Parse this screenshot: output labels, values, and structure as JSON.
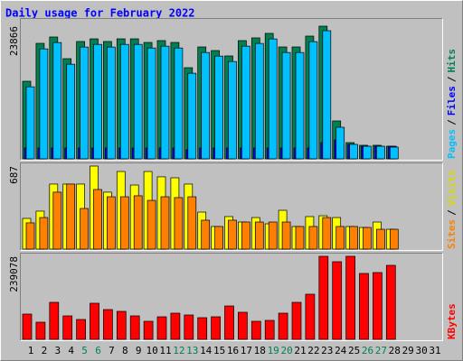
{
  "title": "Daily usage for February 2022",
  "legend_separator": "/",
  "chart_data": [
    {
      "type": "bar",
      "ylim": [
        0,
        23866
      ],
      "yticks": [
        23866
      ],
      "series": [
        {
          "name": "Hits",
          "color": "#008050",
          "values": [
            13960,
            20780,
            21920,
            18020,
            21110,
            21590,
            21110,
            21590,
            21590,
            20940,
            21270,
            20940,
            16400,
            20130,
            19480,
            18510,
            21270,
            21760,
            22570,
            20130,
            20130,
            22080,
            23866,
            6820,
            2920,
            2440,
            2440,
            2270,
            null,
            null,
            null
          ]
        },
        {
          "name": "Files",
          "color": "#0000ff",
          "values": [
            1950,
            1950,
            1950,
            1950,
            1950,
            1950,
            1950,
            1950,
            1950,
            1950,
            1950,
            1950,
            1620,
            1950,
            1950,
            1950,
            1950,
            1950,
            1950,
            1950,
            1950,
            1950,
            2920,
            3410,
            2600,
            2270,
            2270,
            2270,
            null,
            null,
            null
          ]
        },
        {
          "name": "Pages",
          "color": "#00c0ff",
          "values": [
            12960,
            19780,
            20920,
            17020,
            20110,
            20590,
            20110,
            20590,
            20590,
            19940,
            20270,
            19940,
            15400,
            19130,
            18480,
            17510,
            20270,
            20760,
            21570,
            19130,
            19130,
            21080,
            23050,
            5680,
            2600,
            2270,
            2270,
            2110,
            null,
            null,
            null
          ]
        }
      ]
    },
    {
      "type": "bar",
      "ylim": [
        0,
        687
      ],
      "yticks": [
        687
      ],
      "series": [
        {
          "name": "Visits",
          "color": "#ffff00",
          "values": [
            254,
            314,
            538,
            538,
            538,
            687,
            471,
            642,
            530,
            642,
            598,
            590,
            538,
            306,
            187,
            269,
            224,
            261,
            209,
            321,
            187,
            269,
            276,
            261,
            187,
            179,
            224,
            164,
            null,
            null,
            null
          ]
        },
        {
          "name": "Sites",
          "color": "#ff8000",
          "values": [
            217,
            261,
            471,
            538,
            336,
            493,
            433,
            433,
            441,
            403,
            433,
            426,
            433,
            239,
            187,
            239,
            224,
            224,
            224,
            224,
            187,
            187,
            261,
            187,
            187,
            179,
            164,
            164,
            null,
            null,
            null
          ]
        }
      ]
    },
    {
      "type": "bar",
      "ylim": [
        0,
        239078
      ],
      "yticks": [
        239078
      ],
      "series": [
        {
          "name": "KBytes",
          "color": "#ff0000",
          "values": [
            72770,
            49380,
            106560,
            67570,
            57180,
            103960,
            85770,
            80570,
            67570,
            51980,
            64980,
            75370,
            70170,
            62380,
            64980,
            96160,
            77970,
            51980,
            54580,
            75370,
            106560,
            129950,
            239078,
            223510,
            239078,
            189730,
            192330,
            213120,
            null,
            null,
            null
          ]
        }
      ],
      "categories": [
        "1",
        "2",
        "3",
        "4",
        "5",
        "6",
        "7",
        "8",
        "9",
        "10",
        "11",
        "12",
        "13",
        "14",
        "15",
        "16",
        "17",
        "18",
        "19",
        "20",
        "21",
        "22",
        "23",
        "24",
        "25",
        "26",
        "27",
        "28",
        "29",
        "30",
        "31"
      ],
      "category_colors": [
        "#000000",
        "#000000",
        "#000000",
        "#000000",
        "#008050",
        "#008050",
        "#000000",
        "#000000",
        "#000000",
        "#000000",
        "#000000",
        "#008050",
        "#008050",
        "#000000",
        "#000000",
        "#000000",
        "#000000",
        "#000000",
        "#008050",
        "#008050",
        "#000000",
        "#000000",
        "#000000",
        "#000000",
        "#000000",
        "#008050",
        "#008050",
        "#000000",
        "#000000",
        "#000000",
        "#000000"
      ]
    }
  ]
}
